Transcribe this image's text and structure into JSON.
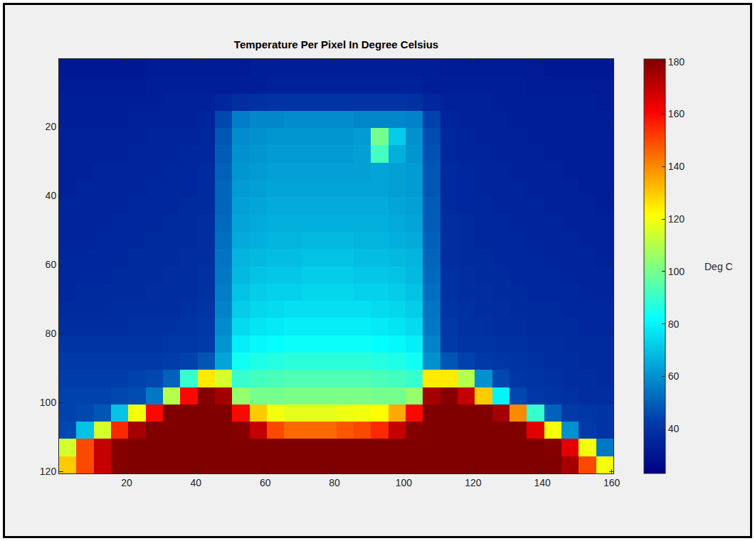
{
  "chart_data": {
    "type": "heatmap",
    "title": "Temperature Per Pixel In Degree Celsius",
    "xlim": [
      0.5,
      160.5
    ],
    "xticks": [
      20,
      40,
      60,
      80,
      100,
      120,
      140,
      160
    ],
    "ylim": [
      120.5,
      0.5
    ],
    "yticks": [
      20,
      40,
      60,
      80,
      100,
      120
    ],
    "grid": false,
    "colorbar_label": "Deg C",
    "colorbar_range": [
      23,
      181
    ],
    "colorbar_ticks": [
      40,
      60,
      80,
      100,
      120,
      140,
      160,
      180
    ],
    "x": [
      3,
      8,
      13,
      18,
      23,
      28,
      33,
      38,
      43,
      48,
      53,
      58,
      63,
      68,
      73,
      78,
      83,
      88,
      93,
      98,
      103,
      108,
      113,
      118,
      123,
      128,
      133,
      138,
      143,
      148,
      153,
      158
    ],
    "y": [
      3,
      8,
      13,
      18,
      23,
      28,
      33,
      38,
      43,
      48,
      53,
      58,
      63,
      68,
      73,
      78,
      83,
      88,
      93,
      98,
      103,
      108,
      113,
      118
    ],
    "values": [
      [
        31,
        31,
        31,
        31,
        31,
        32,
        32,
        32,
        32,
        32,
        32,
        33,
        33,
        33,
        33,
        33,
        33,
        33,
        33,
        33,
        33,
        33,
        32,
        32,
        32,
        32,
        32,
        32,
        31,
        31,
        31,
        31
      ],
      [
        32,
        32,
        32,
        32,
        32,
        33,
        33,
        33,
        33,
        33,
        33,
        33,
        34,
        34,
        34,
        34,
        34,
        34,
        34,
        34,
        34,
        33,
        33,
        33,
        33,
        33,
        33,
        32,
        32,
        32,
        32,
        32
      ],
      [
        33,
        33,
        33,
        33,
        33,
        33,
        34,
        34,
        34,
        36,
        38,
        39,
        40,
        40,
        40,
        40,
        40,
        40,
        40,
        40,
        39,
        36,
        34,
        34,
        34,
        33,
        33,
        33,
        33,
        33,
        33,
        32
      ],
      [
        33,
        33,
        33,
        33,
        34,
        34,
        34,
        34,
        35,
        45,
        56,
        58,
        58,
        59,
        59,
        59,
        59,
        58,
        58,
        58,
        57,
        44,
        35,
        34,
        34,
        34,
        33,
        33,
        33,
        33,
        33,
        33
      ],
      [
        34,
        34,
        34,
        34,
        34,
        35,
        35,
        35,
        36,
        48,
        59,
        60,
        61,
        61,
        61,
        61,
        61,
        62,
        100,
        72,
        60,
        46,
        36,
        35,
        34,
        34,
        34,
        33,
        33,
        33,
        33,
        33
      ],
      [
        34,
        34,
        34,
        34,
        35,
        35,
        35,
        36,
        36,
        49,
        60,
        61,
        62,
        62,
        62,
        62,
        62,
        63,
        92,
        66,
        61,
        47,
        36,
        35,
        35,
        34,
        34,
        34,
        33,
        33,
        33,
        33
      ],
      [
        34,
        34,
        35,
        35,
        35,
        35,
        36,
        36,
        37,
        50,
        61,
        62,
        63,
        63,
        63,
        63,
        63,
        63,
        64,
        63,
        62,
        48,
        37,
        36,
        35,
        35,
        34,
        34,
        34,
        33,
        33,
        33
      ],
      [
        34,
        35,
        35,
        35,
        35,
        36,
        36,
        36,
        37,
        51,
        62,
        63,
        64,
        64,
        64,
        64,
        64,
        64,
        64,
        63,
        62,
        48,
        37,
        36,
        35,
        35,
        35,
        34,
        34,
        34,
        33,
        33
      ],
      [
        35,
        35,
        35,
        35,
        36,
        36,
        36,
        37,
        37,
        51,
        63,
        64,
        65,
        65,
        65,
        65,
        65,
        65,
        65,
        64,
        63,
        49,
        37,
        36,
        36,
        35,
        35,
        35,
        34,
        34,
        34,
        33
      ],
      [
        35,
        35,
        35,
        36,
        36,
        36,
        37,
        37,
        38,
        52,
        64,
        65,
        66,
        66,
        66,
        66,
        66,
        66,
        66,
        65,
        64,
        49,
        38,
        37,
        36,
        36,
        35,
        35,
        35,
        34,
        34,
        34
      ],
      [
        35,
        35,
        36,
        36,
        36,
        37,
        37,
        37,
        38,
        53,
        65,
        66,
        67,
        67,
        68,
        68,
        68,
        67,
        67,
        66,
        65,
        50,
        38,
        37,
        36,
        36,
        36,
        35,
        35,
        35,
        34,
        34
      ],
      [
        36,
        36,
        36,
        36,
        37,
        37,
        37,
        38,
        38,
        54,
        67,
        68,
        69,
        69,
        70,
        70,
        70,
        69,
        69,
        68,
        67,
        51,
        38,
        37,
        37,
        36,
        36,
        36,
        35,
        35,
        35,
        34
      ],
      [
        36,
        36,
        36,
        37,
        37,
        37,
        38,
        38,
        39,
        55,
        68,
        70,
        71,
        71,
        72,
        72,
        72,
        71,
        71,
        70,
        68,
        52,
        39,
        38,
        37,
        37,
        36,
        36,
        36,
        35,
        35,
        35
      ],
      [
        36,
        37,
        37,
        37,
        37,
        38,
        38,
        38,
        39,
        56,
        70,
        72,
        73,
        73,
        74,
        74,
        74,
        73,
        73,
        72,
        70,
        53,
        39,
        38,
        38,
        37,
        37,
        36,
        36,
        36,
        35,
        35
      ],
      [
        37,
        37,
        37,
        38,
        38,
        38,
        38,
        39,
        40,
        57,
        72,
        74,
        75,
        76,
        76,
        76,
        76,
        76,
        75,
        74,
        72,
        54,
        40,
        39,
        38,
        38,
        37,
        37,
        37,
        36,
        36,
        36
      ],
      [
        38,
        38,
        38,
        38,
        39,
        39,
        39,
        40,
        41,
        59,
        75,
        77,
        78,
        79,
        79,
        79,
        79,
        79,
        78,
        77,
        75,
        55,
        41,
        39,
        39,
        38,
        38,
        37,
        37,
        37,
        36,
        36
      ],
      [
        40,
        40,
        40,
        40,
        40,
        40,
        41,
        41,
        42,
        61,
        79,
        81,
        82,
        83,
        83,
        83,
        83,
        83,
        82,
        81,
        79,
        57,
        42,
        40,
        40,
        39,
        39,
        38,
        38,
        37,
        37,
        37
      ],
      [
        42,
        42,
        42,
        42,
        42,
        42,
        43,
        44,
        48,
        64,
        84,
        86,
        87,
        88,
        88,
        88,
        88,
        88,
        87,
        86,
        84,
        60,
        48,
        44,
        42,
        41,
        40,
        39,
        38,
        38,
        37,
        37
      ],
      [
        43,
        43,
        43,
        43,
        44,
        45,
        50,
        90,
        125,
        115,
        90,
        92,
        93,
        94,
        94,
        94,
        94,
        94,
        93,
        92,
        90,
        125,
        125,
        110,
        60,
        45,
        41,
        40,
        39,
        38,
        38,
        37
      ],
      [
        44,
        44,
        44,
        45,
        46,
        55,
        110,
        160,
        180,
        175,
        105,
        100,
        100,
        101,
        101,
        101,
        101,
        101,
        100,
        100,
        105,
        175,
        180,
        170,
        130,
        80,
        45,
        41,
        40,
        39,
        38,
        38
      ],
      [
        44,
        45,
        48,
        70,
        120,
        160,
        181,
        181,
        181,
        181,
        160,
        130,
        120,
        118,
        118,
        118,
        119,
        120,
        122,
        135,
        160,
        181,
        181,
        181,
        181,
        175,
        140,
        90,
        50,
        42,
        41,
        40
      ],
      [
        45,
        70,
        115,
        155,
        175,
        181,
        181,
        181,
        181,
        181,
        180,
        170,
        150,
        145,
        145,
        145,
        148,
        150,
        155,
        170,
        180,
        181,
        181,
        181,
        181,
        181,
        181,
        165,
        120,
        60,
        42,
        40
      ],
      [
        115,
        150,
        170,
        180,
        181,
        181,
        181,
        181,
        181,
        181,
        181,
        181,
        181,
        181,
        181,
        181,
        181,
        181,
        181,
        181,
        181,
        181,
        181,
        181,
        181,
        181,
        181,
        181,
        180,
        165,
        120,
        55
      ],
      [
        130,
        150,
        170,
        180,
        181,
        181,
        181,
        181,
        181,
        181,
        181,
        181,
        181,
        181,
        181,
        181,
        181,
        181,
        181,
        181,
        181,
        181,
        181,
        181,
        181,
        181,
        181,
        181,
        181,
        175,
        150,
        120
      ]
    ]
  }
}
